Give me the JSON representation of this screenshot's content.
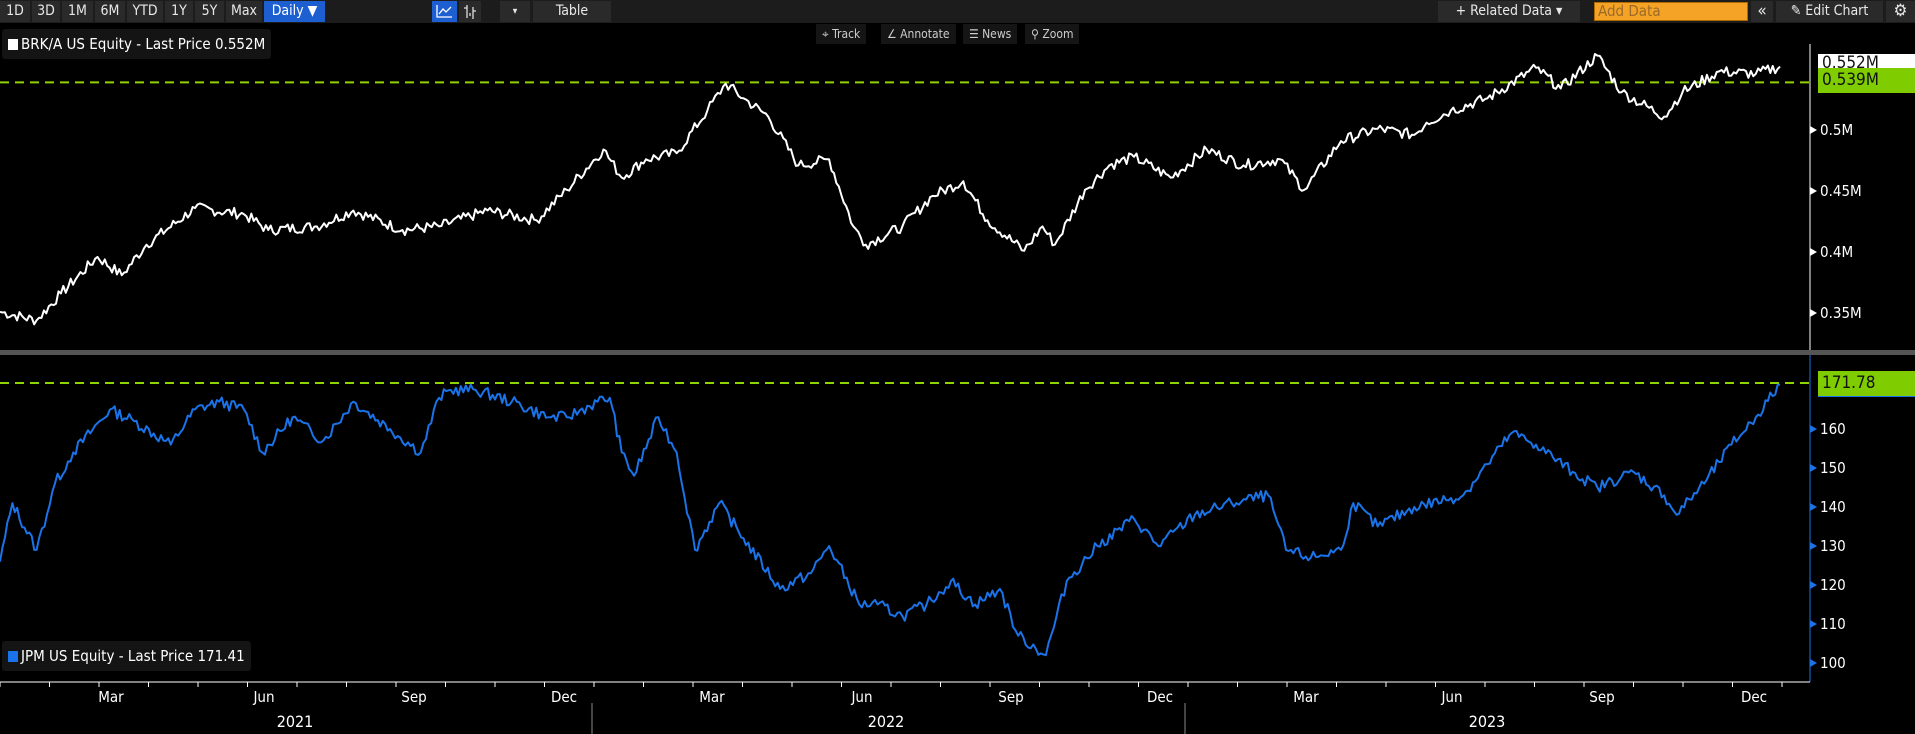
{
  "toolbar": {
    "periods": [
      "1D",
      "3D",
      "1M",
      "6M",
      "YTD",
      "1Y",
      "5Y",
      "Max"
    ],
    "frequency": "Daily ▼",
    "dropdown": "▾",
    "table": "Table",
    "related_data": "+ Related Data ▾",
    "add_data_placeholder": "Add Data",
    "collapse": "«",
    "edit_chart": "✎ Edit Chart",
    "settings": "⚙"
  },
  "chart_tools": [
    "⌖ Track",
    "∠ Annotate",
    "☰ News",
    "⚲ Zoom"
  ],
  "colors": {
    "brk": "#ffffff",
    "jpm": "#1a73e8",
    "reference": "#8fd400",
    "tag_green": "#7fcc00"
  },
  "chart_data": [
    {
      "type": "line",
      "title": "BRK/A US Equity - Last Price 0.552M",
      "legend": "BRK/A US Equity - Last Price 0.552M",
      "x_unit": "months since 2021-01-01",
      "y_unit": "thousand USD",
      "yticks": [
        "0.35M",
        "0.4M",
        "0.45M",
        "0.5M"
      ],
      "ytick_values": [
        350,
        400,
        450,
        500
      ],
      "last_tag": "0.552M",
      "last_value": 552,
      "ref_tag": "0.539M",
      "ref_value": 539,
      "points": [
        [
          0,
          351
        ],
        [
          0.74,
          344
        ],
        [
          1.23,
          366
        ],
        [
          1.97,
          396
        ],
        [
          2.46,
          381
        ],
        [
          2.96,
          406
        ],
        [
          3.94,
          436
        ],
        [
          4.93,
          431
        ],
        [
          5.42,
          418
        ],
        [
          6.4,
          421
        ],
        [
          7.14,
          434
        ],
        [
          8.13,
          418
        ],
        [
          8.87,
          421
        ],
        [
          9.85,
          434
        ],
        [
          10.84,
          426
        ],
        [
          11.45,
          451
        ],
        [
          12.19,
          484
        ],
        [
          12.56,
          461
        ],
        [
          13.05,
          476
        ],
        [
          13.67,
          481
        ],
        [
          14.29,
          516
        ],
        [
          14.66,
          538
        ],
        [
          15.02,
          526
        ],
        [
          15.52,
          511
        ],
        [
          16.13,
          471
        ],
        [
          16.75,
          476
        ],
        [
          17.24,
          421
        ],
        [
          17.49,
          406
        ],
        [
          18.23,
          421
        ],
        [
          18.84,
          446
        ],
        [
          19.46,
          458
        ],
        [
          19.95,
          426
        ],
        [
          20.69,
          401
        ],
        [
          21.06,
          421
        ],
        [
          21.31,
          406
        ],
        [
          21.92,
          451
        ],
        [
          22.41,
          471
        ],
        [
          22.91,
          478
        ],
        [
          23.65,
          461
        ],
        [
          24.38,
          484
        ],
        [
          25.12,
          471
        ],
        [
          25.86,
          476
        ],
        [
          26.35,
          451
        ],
        [
          27.09,
          491
        ],
        [
          27.83,
          501
        ],
        [
          28.57,
          496
        ],
        [
          28.82,
          506
        ],
        [
          29.31,
          516
        ],
        [
          30.05,
          526
        ],
        [
          31.03,
          551
        ],
        [
          31.53,
          534
        ],
        [
          32.27,
          561
        ],
        [
          32.76,
          531
        ],
        [
          33.62,
          511
        ],
        [
          33.99,
          531
        ],
        [
          34.73,
          548
        ],
        [
          35.47,
          546
        ],
        [
          35.96,
          552
        ]
      ]
    },
    {
      "type": "line",
      "title": "JPM US Equity - Last Price 171.41",
      "legend": "JPM US Equity - Last Price 171.41",
      "x_unit": "months since 2021-01-01",
      "y_unit": "USD",
      "yticks": [
        "100",
        "110",
        "120",
        "130",
        "140",
        "150",
        "160"
      ],
      "ytick_values": [
        100,
        110,
        120,
        130,
        140,
        150,
        160
      ],
      "ref_tag": "171.78",
      "ref_value": 171.78,
      "points": [
        [
          0,
          126
        ],
        [
          0.25,
          141
        ],
        [
          0.74,
          129
        ],
        [
          1.11,
          146
        ],
        [
          1.48,
          154
        ],
        [
          2.22,
          165
        ],
        [
          2.71,
          162
        ],
        [
          3.45,
          156
        ],
        [
          3.94,
          165
        ],
        [
          4.43,
          167
        ],
        [
          4.93,
          165
        ],
        [
          5.3,
          154
        ],
        [
          5.91,
          163
        ],
        [
          6.53,
          157
        ],
        [
          7.14,
          167
        ],
        [
          7.88,
          160
        ],
        [
          8.5,
          154
        ],
        [
          8.87,
          168
        ],
        [
          9.11,
          170
        ],
        [
          9.61,
          170
        ],
        [
          10.34,
          167
        ],
        [
          11.08,
          163
        ],
        [
          11.45,
          163
        ],
        [
          12.07,
          167
        ],
        [
          12.32,
          168
        ],
        [
          12.56,
          154
        ],
        [
          12.81,
          148
        ],
        [
          13.3,
          163
        ],
        [
          13.67,
          154
        ],
        [
          14.04,
          129
        ],
        [
          14.53,
          141
        ],
        [
          15.02,
          132
        ],
        [
          15.76,
          119
        ],
        [
          16.38,
          123
        ],
        [
          16.75,
          130
        ],
        [
          17.36,
          115
        ],
        [
          17.73,
          115
        ],
        [
          18.23,
          112
        ],
        [
          18.72,
          115
        ],
        [
          19.21,
          121
        ],
        [
          19.7,
          115
        ],
        [
          20.2,
          119
        ],
        [
          20.57,
          107
        ],
        [
          21.13,
          102
        ],
        [
          21.55,
          121
        ],
        [
          22.17,
          130
        ],
        [
          22.91,
          137
        ],
        [
          23.4,
          130
        ],
        [
          24.14,
          138
        ],
        [
          24.88,
          141
        ],
        [
          25.62,
          143
        ],
        [
          25.98,
          129
        ],
        [
          26.48,
          127
        ],
        [
          27.09,
          129
        ],
        [
          27.34,
          141
        ],
        [
          27.83,
          135
        ],
        [
          28.57,
          140
        ],
        [
          29.56,
          143
        ],
        [
          30.05,
          151
        ],
        [
          30.54,
          159
        ],
        [
          31.03,
          156
        ],
        [
          31.77,
          149
        ],
        [
          32.27,
          145
        ],
        [
          33,
          149
        ],
        [
          33.62,
          143
        ],
        [
          33.87,
          138
        ],
        [
          34.48,
          147
        ],
        [
          34.98,
          156
        ],
        [
          35.47,
          163
        ],
        [
          35.96,
          171.4
        ]
      ]
    }
  ],
  "xaxis": {
    "months": [
      "Mar",
      "Jun",
      "Sep",
      "Dec",
      "Mar",
      "Jun",
      "Sep",
      "Dec",
      "Mar",
      "Jun",
      "Sep",
      "Dec"
    ],
    "years": [
      "2021",
      "2022",
      "2023"
    ]
  }
}
